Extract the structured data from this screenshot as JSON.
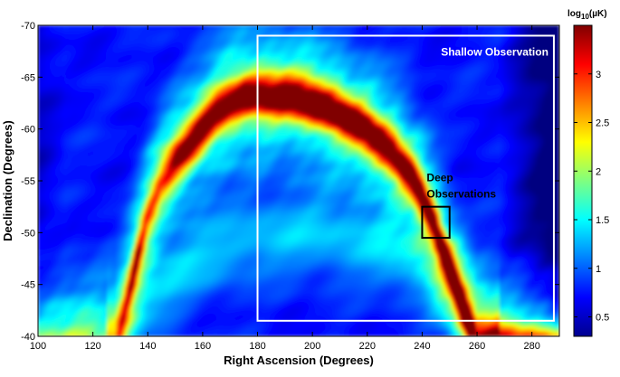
{
  "chart_data": {
    "type": "heatmap",
    "xlabel": "Right Ascension (Degrees)",
    "ylabel": "Declination (Degrees)",
    "x_ticks": [
      100,
      120,
      140,
      160,
      180,
      200,
      220,
      240,
      260,
      280
    ],
    "y_ticks": [
      -70,
      -65,
      -60,
      -55,
      -50,
      -45,
      -40
    ],
    "y_tick_labels": [
      "-70",
      "-65",
      "-60",
      "-55",
      "-50",
      "-45",
      "-40"
    ],
    "xlim": [
      100,
      290
    ],
    "ylim": [
      -70,
      -40
    ],
    "colorbar": {
      "label_main": "log",
      "label_sub": "10",
      "label_unit": "(µK)",
      "ticks": [
        0.5,
        1,
        1.5,
        2,
        2.5,
        3
      ],
      "tick_labels": [
        "0.5",
        "1",
        "1.5",
        "2",
        "2.5",
        "3"
      ],
      "range": [
        0.3,
        3.5
      ],
      "colormap": "jet"
    },
    "annotations": {
      "shallow": {
        "label": "Shallow Observation",
        "ra": [
          180,
          288
        ],
        "dec": [
          -69,
          -41.5
        ],
        "color": "#ffffff"
      },
      "deep": {
        "label_line1": "Deep",
        "label_line2": "Observations",
        "ra": [
          240,
          250
        ],
        "dec": [
          -52.5,
          -49.5
        ],
        "color": "#000000"
      }
    },
    "ridge_ra": [
      128,
      132,
      136,
      140,
      145,
      150,
      155,
      160,
      165,
      170,
      175,
      180,
      190,
      200,
      210,
      220,
      230,
      236,
      240,
      244,
      248,
      252,
      256,
      260
    ],
    "ridge_dec": [
      -38.5,
      -43,
      -47.5,
      -51.5,
      -55,
      -57,
      -58.5,
      -60,
      -61.5,
      -62.5,
      -63.2,
      -63.3,
      -63.2,
      -62.6,
      -61.5,
      -59.8,
      -57.5,
      -55.5,
      -53.5,
      -51,
      -48,
      -45,
      -42,
      -39
    ],
    "ridge_peak": [
      1.5,
      1.8,
      2.5,
      2.0,
      2.0,
      2.6,
      2.8,
      3.0,
      2.9,
      3.0,
      3.1,
      3.0,
      3.1,
      3.3,
      3.2,
      3.1,
      3.0,
      2.9,
      2.9,
      2.8,
      2.9,
      3.0,
      3.0,
      2.8
    ],
    "secondary_arc_ra": [
      125,
      140,
      160,
      180,
      200,
      220,
      240,
      255,
      265
    ],
    "secondary_arc_dec": [
      -40,
      -44,
      -47.5,
      -49.5,
      -49.8,
      -49,
      -47,
      -44,
      -41
    ]
  }
}
